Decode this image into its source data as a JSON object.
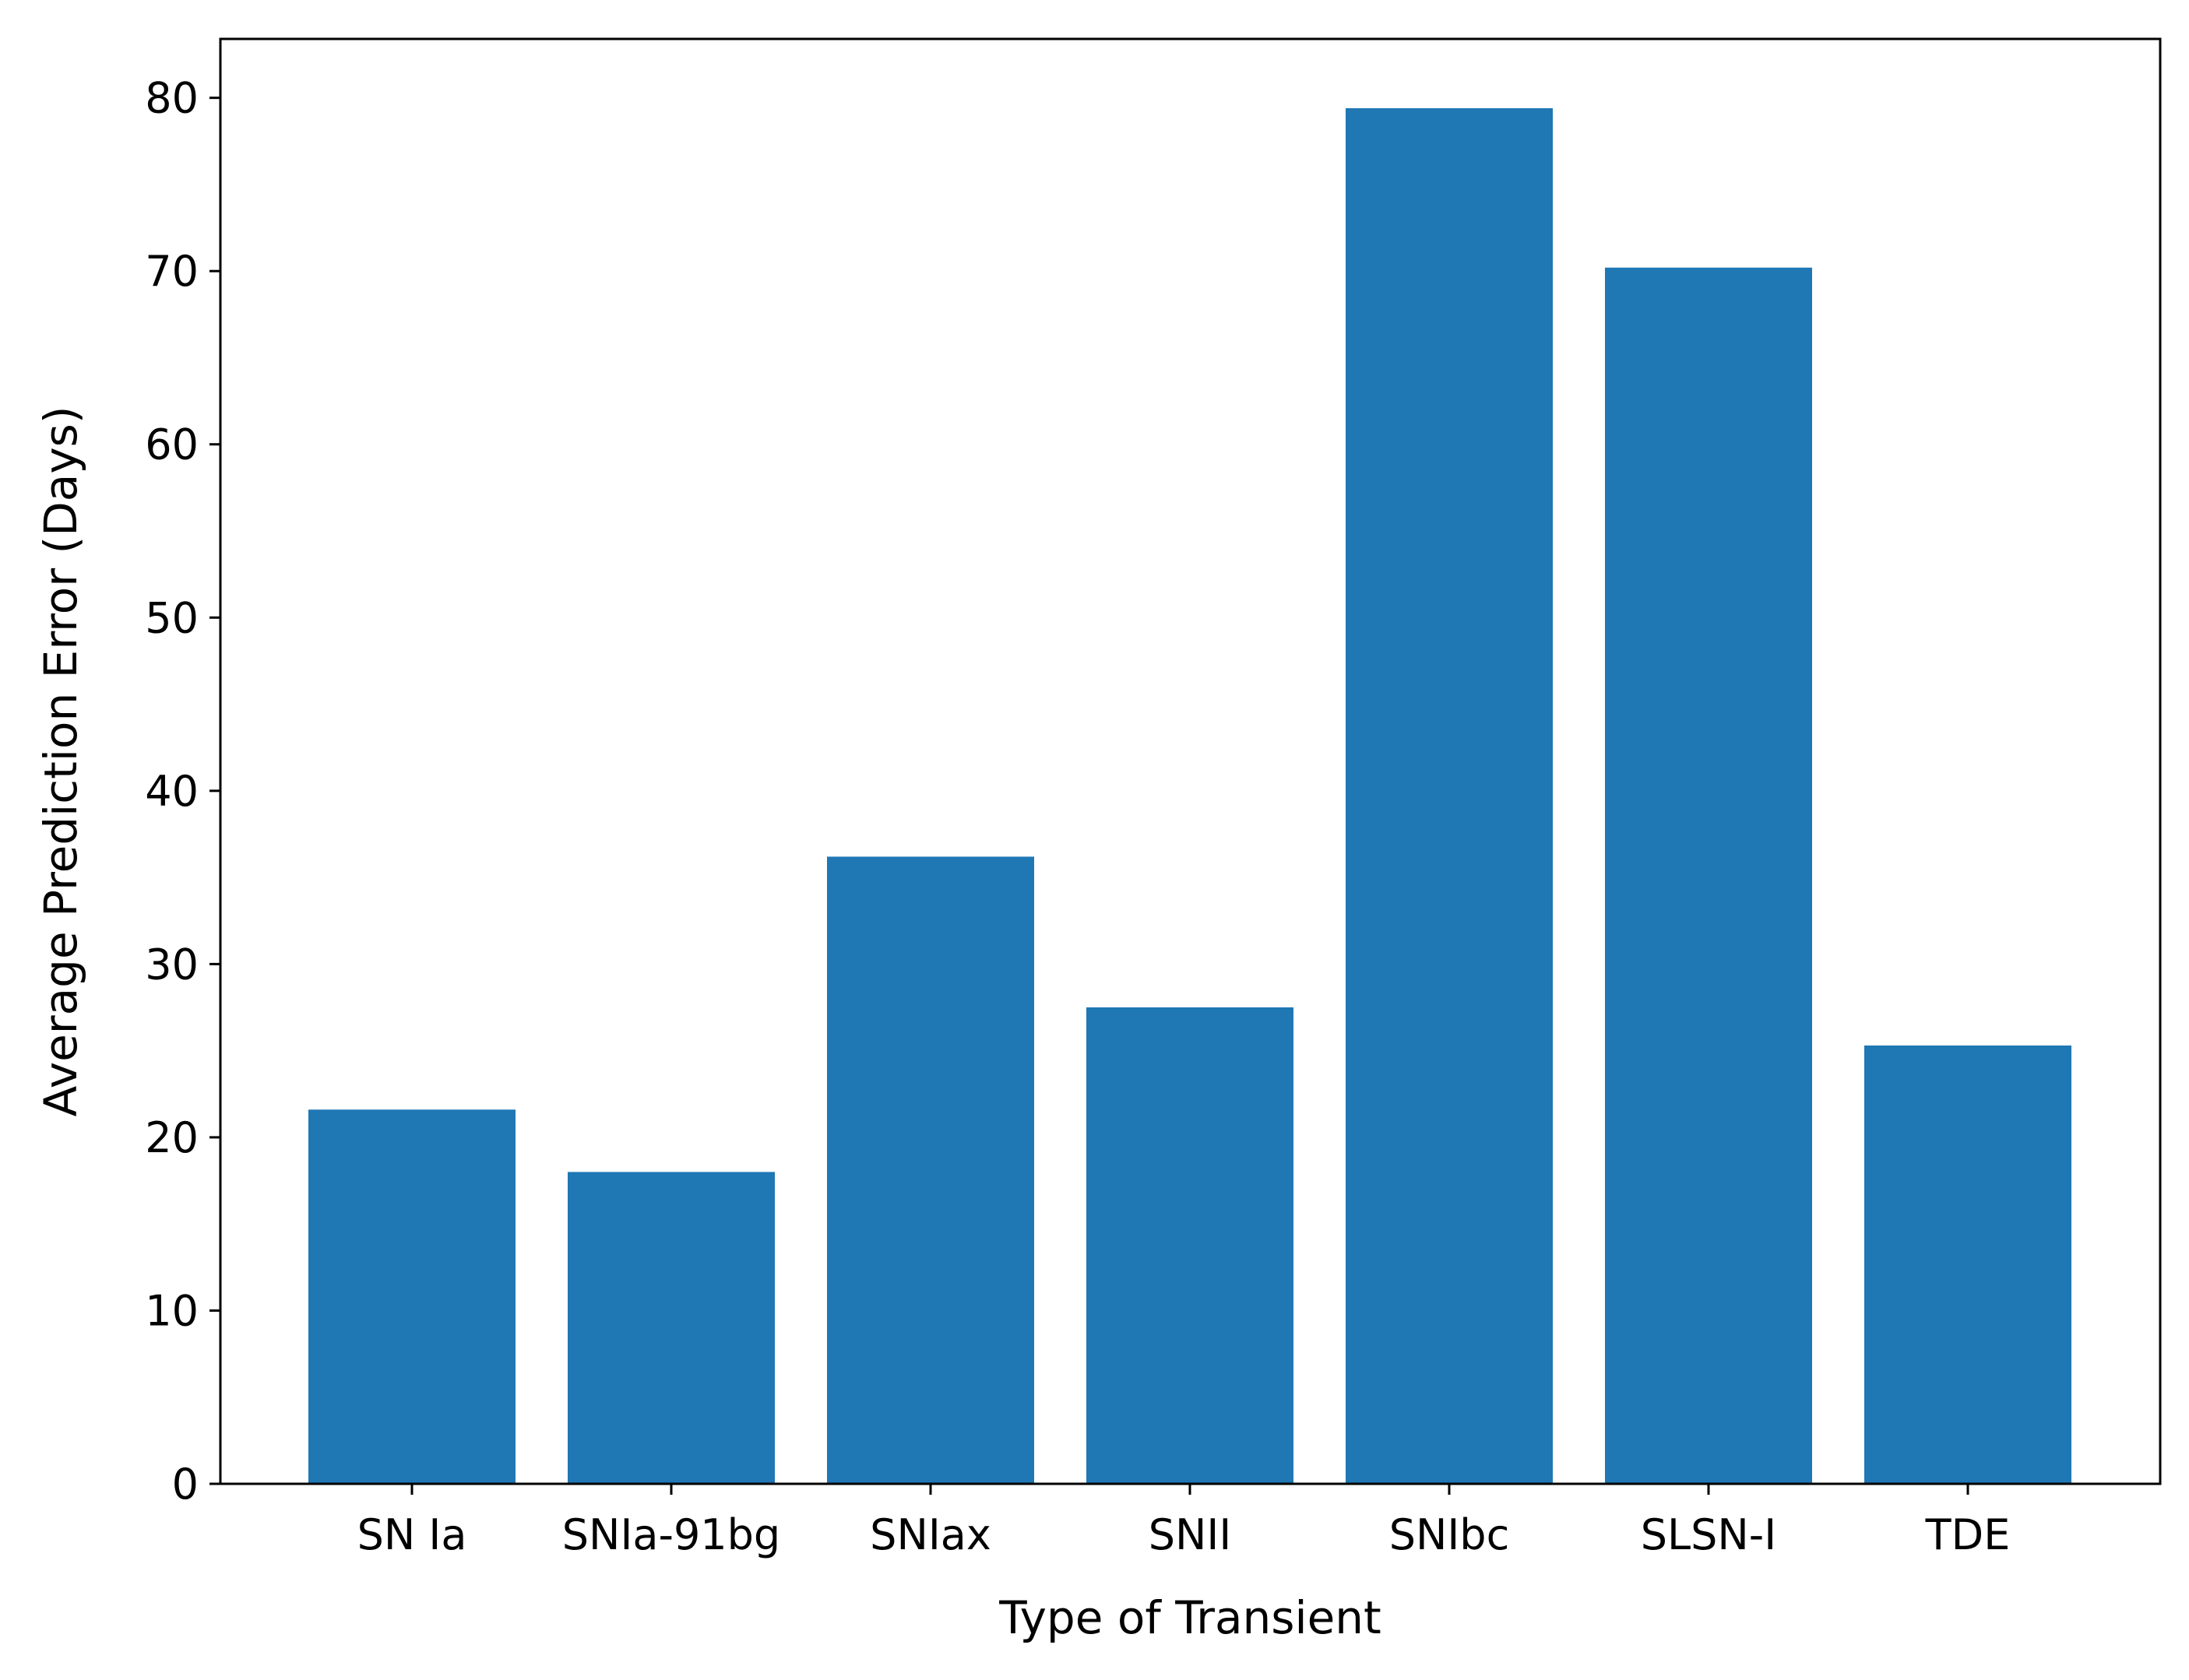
{
  "chart_data": {
    "type": "bar",
    "title": "",
    "xlabel": "Type of Transient",
    "ylabel": "Average Prediction Error (Days)",
    "categories": [
      "SN Ia",
      "SNIa-91bg",
      "SNIax",
      "SNII",
      "SNIbc",
      "SLSN-I",
      "TDE"
    ],
    "values": [
      21.6,
      18.0,
      36.2,
      27.5,
      79.4,
      70.2,
      25.3
    ],
    "ylim": [
      0,
      83.4
    ],
    "yticks": [
      0,
      10,
      20,
      30,
      40,
      50,
      60,
      70,
      80
    ],
    "grid": false,
    "legend": "none",
    "bar_color": "#1f77b4"
  }
}
